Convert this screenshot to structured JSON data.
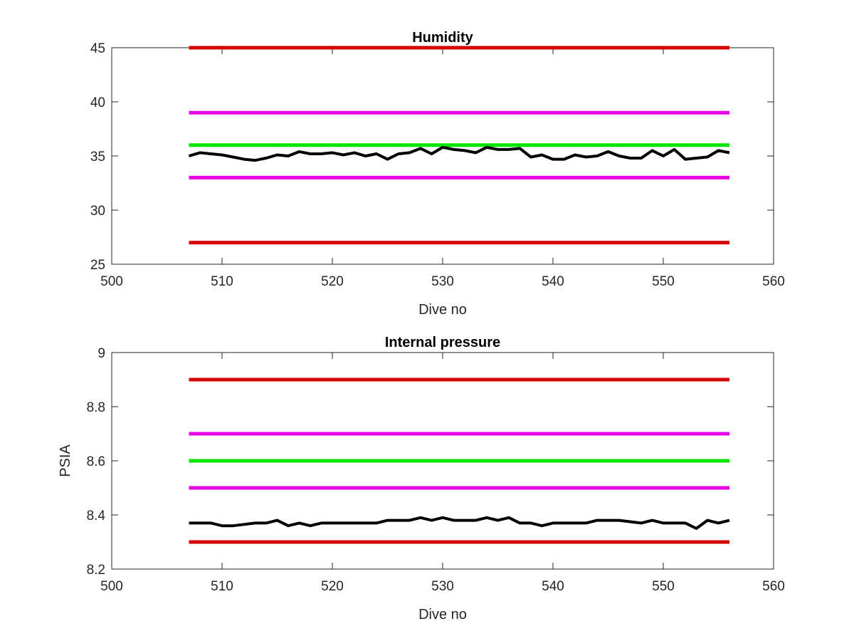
{
  "chart_data": [
    {
      "type": "line",
      "title": "Humidity",
      "xlabel": "Dive no",
      "ylabel": "",
      "xlim": [
        500,
        560
      ],
      "ylim": [
        25,
        45
      ],
      "xticks": [
        500,
        510,
        520,
        530,
        540,
        550,
        560
      ],
      "yticks": [
        25,
        30,
        35,
        40,
        45
      ],
      "grid": false,
      "reference_lines": [
        {
          "y": 45,
          "x": [
            507,
            556
          ],
          "color": "#d40000"
        },
        {
          "y": 39,
          "x": [
            507,
            556
          ],
          "color": "#e600e6"
        },
        {
          "y": 36,
          "x": [
            507,
            556
          ],
          "color": "#00e600"
        },
        {
          "y": 33,
          "x": [
            507,
            556
          ],
          "color": "#e600e6"
        },
        {
          "y": 27,
          "x": [
            507,
            556
          ],
          "color": "#d40000"
        }
      ],
      "series": [
        {
          "color": "#000000",
          "x": [
            507,
            508,
            509,
            510,
            511,
            512,
            513,
            514,
            515,
            516,
            517,
            518,
            519,
            520,
            521,
            522,
            523,
            524,
            525,
            526,
            527,
            528,
            529,
            530,
            531,
            532,
            533,
            534,
            535,
            536,
            537,
            538,
            539,
            540,
            541,
            542,
            543,
            544,
            545,
            546,
            547,
            548,
            549,
            550,
            551,
            552,
            553,
            554,
            555,
            556
          ],
          "values": [
            35.0,
            35.3,
            35.2,
            35.1,
            34.9,
            34.7,
            34.6,
            34.8,
            35.1,
            35.0,
            35.4,
            35.2,
            35.2,
            35.3,
            35.1,
            35.3,
            35.0,
            35.2,
            34.7,
            35.2,
            35.3,
            35.7,
            35.2,
            35.8,
            35.6,
            35.5,
            35.3,
            35.8,
            35.6,
            35.6,
            35.7,
            34.9,
            35.1,
            34.7,
            34.7,
            35.1,
            34.9,
            35.0,
            35.4,
            35.0,
            34.8,
            34.8,
            35.5,
            35.0,
            35.6,
            34.7,
            34.8,
            34.9,
            35.5,
            35.3
          ]
        }
      ]
    },
    {
      "type": "line",
      "title": "Internal pressure",
      "xlabel": "Dive no",
      "ylabel": "PSIA",
      "xlim": [
        500,
        560
      ],
      "ylim": [
        8.2,
        9.0
      ],
      "xticks": [
        500,
        510,
        520,
        530,
        540,
        550,
        560
      ],
      "yticks": [
        8.2,
        8.4,
        8.6,
        8.8,
        9.0
      ],
      "ytick_labels": [
        "8.2",
        "8.4",
        "8.6",
        "8.8",
        "9"
      ],
      "grid": false,
      "reference_lines": [
        {
          "y": 8.9,
          "x": [
            507,
            556
          ],
          "color": "#d40000"
        },
        {
          "y": 8.7,
          "x": [
            507,
            556
          ],
          "color": "#e600e6"
        },
        {
          "y": 8.6,
          "x": [
            507,
            556
          ],
          "color": "#00e600"
        },
        {
          "y": 8.5,
          "x": [
            507,
            556
          ],
          "color": "#e600e6"
        },
        {
          "y": 8.3,
          "x": [
            507,
            556
          ],
          "color": "#d40000"
        }
      ],
      "series": [
        {
          "color": "#000000",
          "x": [
            507,
            508,
            509,
            510,
            511,
            512,
            513,
            514,
            515,
            516,
            517,
            518,
            519,
            520,
            521,
            522,
            523,
            524,
            525,
            526,
            527,
            528,
            529,
            530,
            531,
            532,
            533,
            534,
            535,
            536,
            537,
            538,
            539,
            540,
            541,
            542,
            543,
            544,
            545,
            546,
            547,
            548,
            549,
            550,
            551,
            552,
            553,
            554,
            555,
            556
          ],
          "values": [
            8.37,
            8.37,
            8.37,
            8.36,
            8.36,
            8.365,
            8.37,
            8.37,
            8.38,
            8.36,
            8.37,
            8.36,
            8.37,
            8.37,
            8.37,
            8.37,
            8.37,
            8.37,
            8.38,
            8.38,
            8.38,
            8.39,
            8.38,
            8.39,
            8.38,
            8.38,
            8.38,
            8.39,
            8.38,
            8.39,
            8.37,
            8.37,
            8.36,
            8.37,
            8.37,
            8.37,
            8.37,
            8.38,
            8.38,
            8.38,
            8.375,
            8.37,
            8.38,
            8.37,
            8.37,
            8.37,
            8.35,
            8.38,
            8.37,
            8.38
          ]
        }
      ]
    }
  ]
}
